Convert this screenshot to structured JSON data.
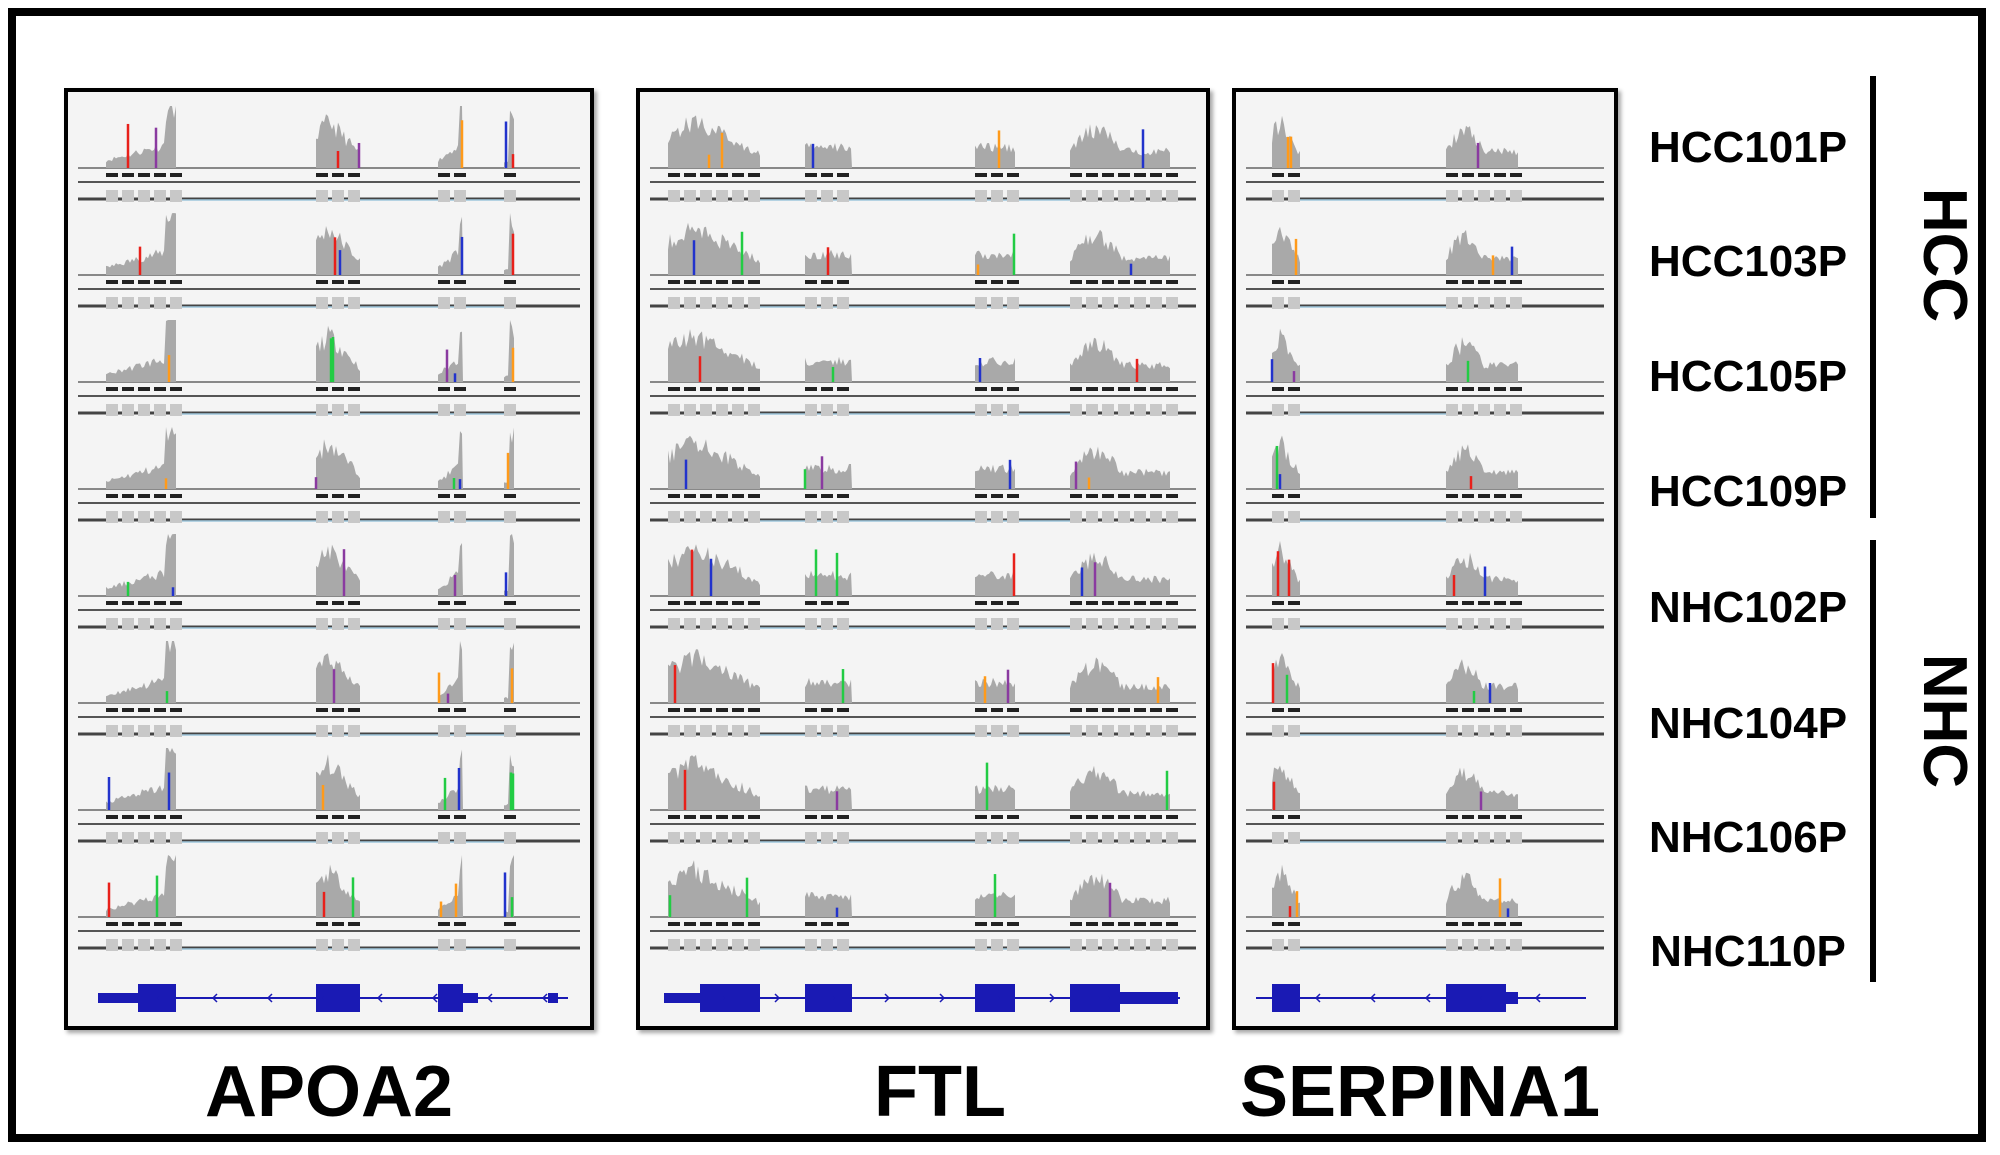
{
  "genes": [
    {
      "name": "APOA2",
      "strand": "-"
    },
    {
      "name": "FTL",
      "strand": "+"
    },
    {
      "name": "SERPINA1",
      "strand": "-"
    }
  ],
  "samples": [
    "HCC101P",
    "HCC103P",
    "HCC105P",
    "HCC109P",
    "NHC102P",
    "NHC104P",
    "NHC106P",
    "NHC110P"
  ],
  "groups": [
    {
      "name": "HCC",
      "samples": [
        "HCC101P",
        "HCC103P",
        "HCC105P",
        "HCC109P"
      ]
    },
    {
      "name": "NHC",
      "samples": [
        "NHC102P",
        "NHC104P",
        "NHC106P",
        "NHC110P"
      ]
    }
  ],
  "colors": {
    "coverage": "#a9a9a9",
    "gene_model": "#1a1ab4",
    "junction": "#9ec6dc",
    "read": "#222222",
    "mismatch": [
      "#e8201a",
      "#22cc44",
      "#2233cc",
      "#ff9a1a",
      "#8a3aa0"
    ]
  }
}
